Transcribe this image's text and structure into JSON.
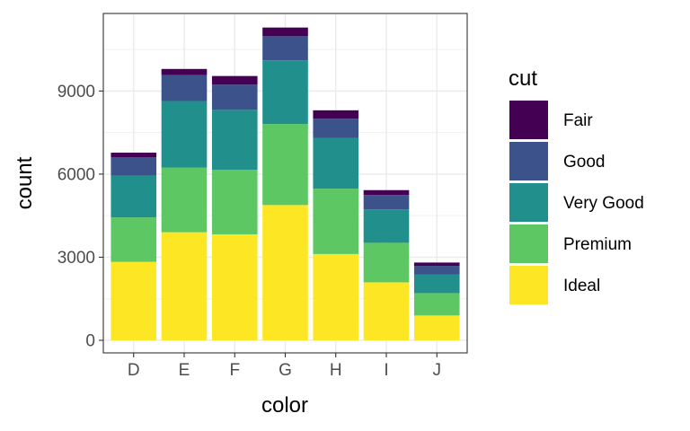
{
  "chart_data": {
    "type": "bar",
    "stacked": true,
    "xlabel": "color",
    "ylabel": "count",
    "categories": [
      "D",
      "E",
      "F",
      "G",
      "H",
      "I",
      "J"
    ],
    "ylim": [
      0,
      11800
    ],
    "yticks": [
      0,
      3000,
      6000,
      9000
    ],
    "grid": true,
    "legend": {
      "title": "cut",
      "position": "right"
    },
    "series": [
      {
        "name": "Ideal",
        "color": "#FDE725",
        "values": [
          2834,
          3903,
          3826,
          4884,
          3115,
          2093,
          896
        ]
      },
      {
        "name": "Premium",
        "color": "#5DC863",
        "values": [
          1603,
          2337,
          2331,
          2924,
          2360,
          1428,
          808
        ]
      },
      {
        "name": "Very Good",
        "color": "#21908C",
        "values": [
          1513,
          2400,
          2164,
          2299,
          1824,
          1204,
          678
        ]
      },
      {
        "name": "Good",
        "color": "#3B528B",
        "values": [
          662,
          933,
          909,
          871,
          702,
          522,
          307
        ]
      },
      {
        "name": "Fair",
        "color": "#440154",
        "values": [
          163,
          224,
          312,
          314,
          303,
          175,
          119
        ]
      }
    ]
  }
}
